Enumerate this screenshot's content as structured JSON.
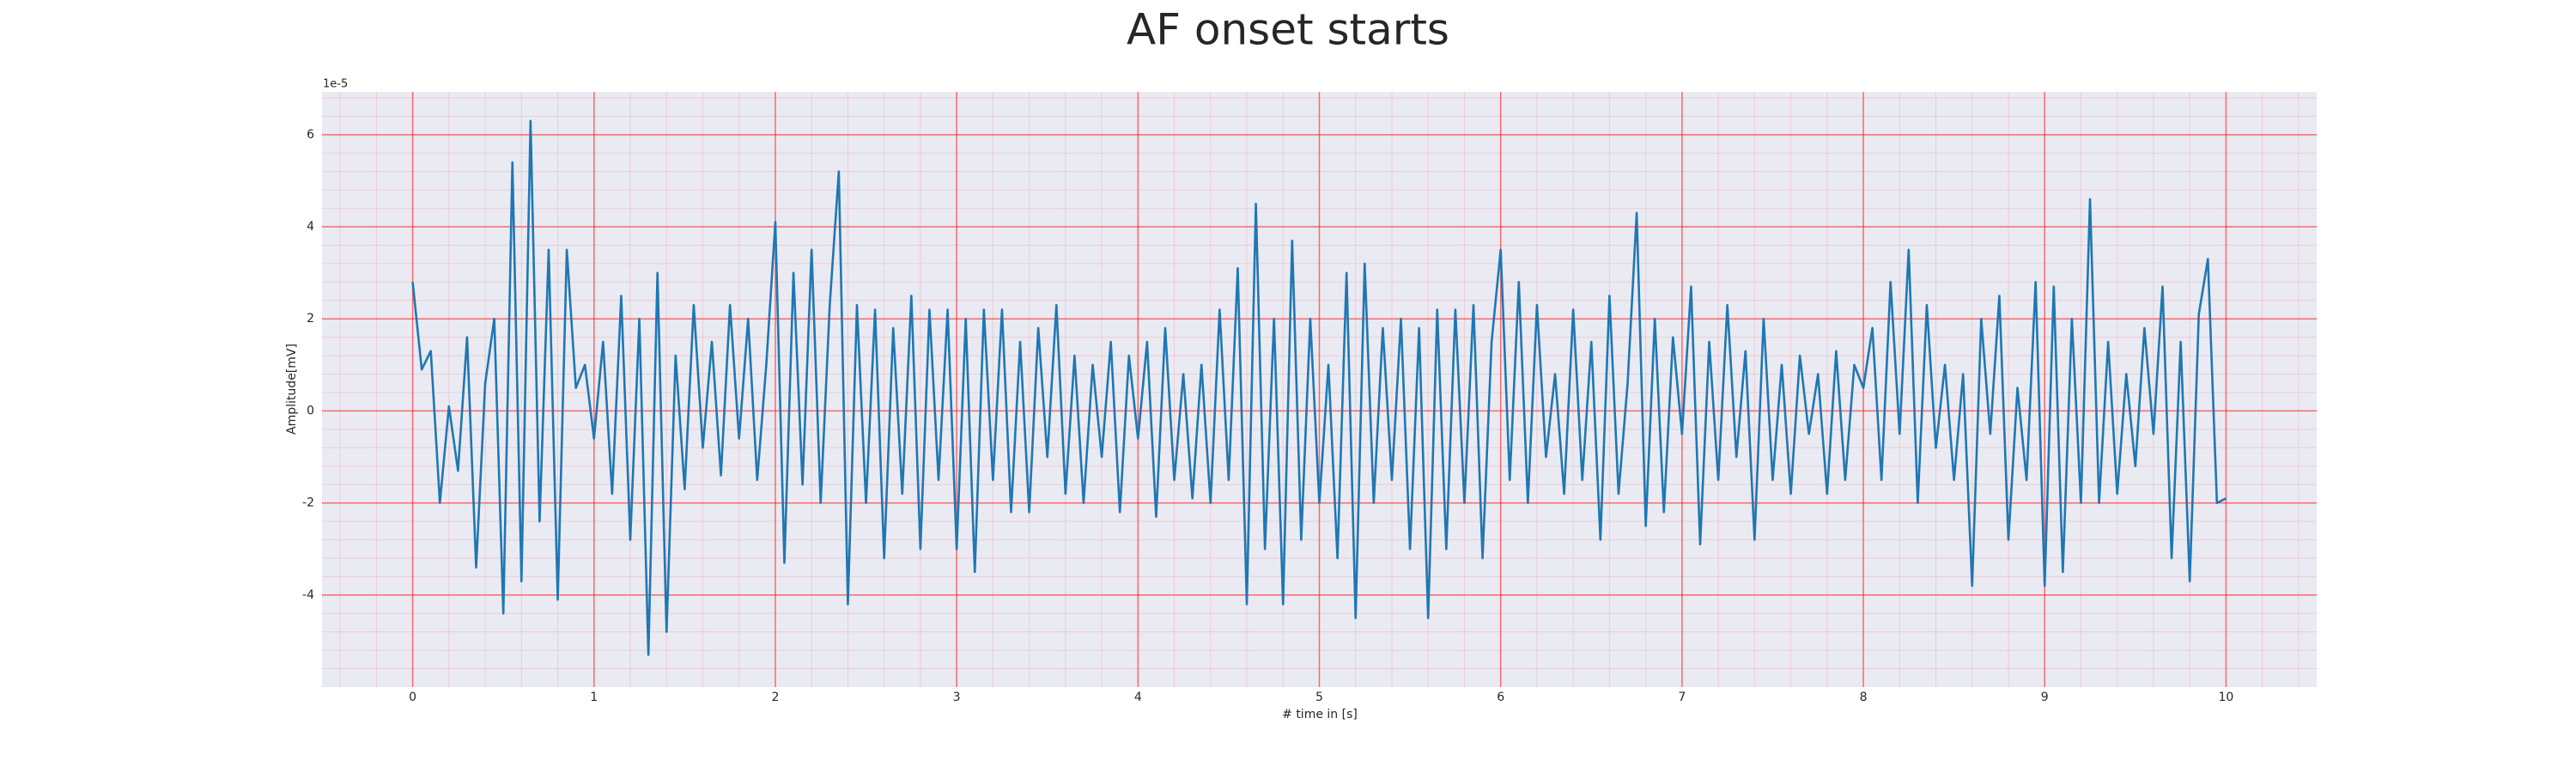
{
  "chart_data": {
    "type": "line",
    "title": "AF onset starts",
    "xlabel": "# time in [s]",
    "ylabel": "Amplitude[mV]",
    "offset_label": "1e-5",
    "color": "#1f77b4",
    "background": "#eaeaf2",
    "grid": true,
    "grid_color": "#ff0000",
    "minor_grid": true,
    "xlim": [
      -0.5,
      10.5
    ],
    "ylim": [
      -6.0,
      6.93
    ],
    "xticks": [
      0,
      1,
      2,
      3,
      4,
      5,
      6,
      7,
      8,
      9,
      10
    ],
    "yticks": [
      -4,
      -2,
      0,
      2,
      4,
      6
    ],
    "xminorticks": [
      -0.4,
      -0.2,
      0.2,
      0.4,
      0.6,
      0.8,
      1.2,
      1.4,
      1.6,
      1.8,
      2.2,
      2.4,
      2.6,
      2.8,
      3.2,
      3.4,
      3.6,
      3.8,
      4.2,
      4.4,
      4.6,
      4.8,
      5.2,
      5.4,
      5.6,
      5.8,
      6.2,
      6.4,
      6.6,
      6.8,
      7.2,
      7.4,
      7.6,
      7.8,
      8.2,
      8.4,
      8.6,
      8.8,
      9.2,
      9.4,
      9.6,
      9.8,
      10.2,
      10.4
    ],
    "yminorticks": [
      -5.6,
      -5.2,
      -4.8,
      -4.4,
      -3.6,
      -3.2,
      -2.8,
      -2.4,
      -1.6,
      -1.2,
      -0.8,
      -0.4,
      0.4,
      0.8,
      1.2,
      1.6,
      2.4,
      2.8,
      3.2,
      3.6,
      4.4,
      4.8,
      5.2,
      5.6,
      6.4,
      6.8
    ],
    "x": [
      0,
      0.05,
      0.1,
      0.15,
      0.2,
      0.25,
      0.3,
      0.35,
      0.4,
      0.45,
      0.5,
      0.55,
      0.6,
      0.65,
      0.7,
      0.75,
      0.8,
      0.85,
      0.9,
      0.95,
      1,
      1.05,
      1.1,
      1.15,
      1.2,
      1.25,
      1.3,
      1.35,
      1.4,
      1.45,
      1.5,
      1.55,
      1.6,
      1.65,
      1.7,
      1.75,
      1.8,
      1.85,
      1.9,
      1.95,
      2,
      2.05,
      2.1,
      2.15,
      2.2,
      2.25,
      2.3,
      2.35,
      2.4,
      2.45,
      2.5,
      2.55,
      2.6,
      2.65,
      2.7,
      2.75,
      2.8,
      2.85,
      2.9,
      2.95,
      3,
      3.05,
      3.1,
      3.15,
      3.2,
      3.25,
      3.3,
      3.35,
      3.4,
      3.45,
      3.5,
      3.55,
      3.6,
      3.65,
      3.7,
      3.75,
      3.8,
      3.85,
      3.9,
      3.95,
      4,
      4.05,
      4.1,
      4.15,
      4.2,
      4.25,
      4.3,
      4.35,
      4.4,
      4.45,
      4.5,
      4.55,
      4.6,
      4.65,
      4.7,
      4.75,
      4.8,
      4.85,
      4.9,
      4.95,
      5,
      5.05,
      5.1,
      5.15,
      5.2,
      5.25,
      5.3,
      5.35,
      5.4,
      5.45,
      5.5,
      5.55,
      5.6,
      5.65,
      5.7,
      5.75,
      5.8,
      5.85,
      5.9,
      5.95,
      6,
      6.05,
      6.1,
      6.15,
      6.2,
      6.25,
      6.3,
      6.35,
      6.4,
      6.45,
      6.5,
      6.55,
      6.6,
      6.65,
      6.7,
      6.75,
      6.8,
      6.85,
      6.9,
      6.95,
      7,
      7.05,
      7.1,
      7.15,
      7.2,
      7.25,
      7.3,
      7.35,
      7.4,
      7.45,
      7.5,
      7.55,
      7.6,
      7.65,
      7.7,
      7.75,
      7.8,
      7.85,
      7.9,
      7.95,
      8,
      8.05,
      8.1,
      8.15,
      8.2,
      8.25,
      8.3,
      8.35,
      8.4,
      8.45,
      8.5,
      8.55,
      8.6,
      8.65,
      8.7,
      8.75,
      8.8,
      8.85,
      8.9,
      8.95,
      9,
      9.05,
      9.1,
      9.15,
      9.2,
      9.25,
      9.3,
      9.35,
      9.4,
      9.45,
      9.5,
      9.55,
      9.6,
      9.65,
      9.7,
      9.75,
      9.8,
      9.85,
      9.9,
      9.95,
      10
    ],
    "values": [
      2.8,
      0.9,
      1.3,
      -2.0,
      0.1,
      -1.3,
      1.6,
      -3.4,
      0.6,
      2.0,
      -4.4,
      5.4,
      -3.7,
      6.3,
      -2.4,
      3.5,
      -4.1,
      3.5,
      0.5,
      1.0,
      -0.6,
      1.5,
      -1.8,
      2.5,
      -2.8,
      2.0,
      -5.3,
      3.0,
      -4.8,
      1.2,
      -1.7,
      2.3,
      -0.8,
      1.5,
      -1.4,
      2.3,
      -0.6,
      2.0,
      -1.5,
      1.0,
      4.1,
      -3.3,
      3.0,
      -1.6,
      3.5,
      -2.0,
      2.3,
      5.2,
      -4.2,
      2.3,
      -2.0,
      2.2,
      -3.2,
      1.8,
      -1.8,
      2.5,
      -3.0,
      2.2,
      -1.5,
      2.2,
      -3.0,
      2.0,
      -3.5,
      2.2,
      -1.5,
      2.2,
      -2.2,
      1.5,
      -2.2,
      1.8,
      -1.0,
      2.3,
      -1.8,
      1.2,
      -2.0,
      1.0,
      -1.0,
      1.5,
      -2.2,
      1.2,
      -0.6,
      1.5,
      -2.3,
      1.8,
      -1.5,
      0.8,
      -1.9,
      1.0,
      -2.0,
      2.2,
      -1.5,
      3.1,
      -4.2,
      4.5,
      -3.0,
      2.0,
      -4.2,
      3.7,
      -2.8,
      2.0,
      -2.0,
      1.0,
      -3.2,
      3.0,
      -4.5,
      3.2,
      -2.0,
      1.8,
      -1.5,
      2.0,
      -3.0,
      1.8,
      -4.5,
      2.2,
      -3.0,
      2.2,
      -2.0,
      2.3,
      -3.2,
      1.5,
      3.5,
      -1.5,
      2.8,
      -2.0,
      2.3,
      -1.0,
      0.8,
      -1.8,
      2.2,
      -1.5,
      1.5,
      -2.8,
      2.5,
      -1.8,
      0.6,
      4.3,
      -2.5,
      2.0,
      -2.2,
      1.6,
      -0.5,
      2.7,
      -2.9,
      1.5,
      -1.5,
      2.3,
      -1.0,
      1.3,
      -2.8,
      2.0,
      -1.5,
      1.0,
      -1.8,
      1.2,
      -0.5,
      0.8,
      -1.8,
      1.3,
      -1.5,
      1.0,
      0.5,
      1.8,
      -1.5,
      2.8,
      -0.5,
      3.5,
      -2.0,
      2.3,
      -0.8,
      1.0,
      -1.5,
      0.8,
      -3.8,
      2.0,
      -0.5,
      2.5,
      -2.8,
      0.5,
      -1.5,
      2.8,
      -3.8,
      2.7,
      -3.5,
      2.0,
      -2.0,
      4.6,
      -2.0,
      1.5,
      -1.8,
      0.8,
      -1.2,
      1.8,
      -0.5,
      2.7,
      -3.2,
      1.5,
      -3.7,
      2.1,
      3.3,
      -2.0,
      -1.9
    ]
  }
}
